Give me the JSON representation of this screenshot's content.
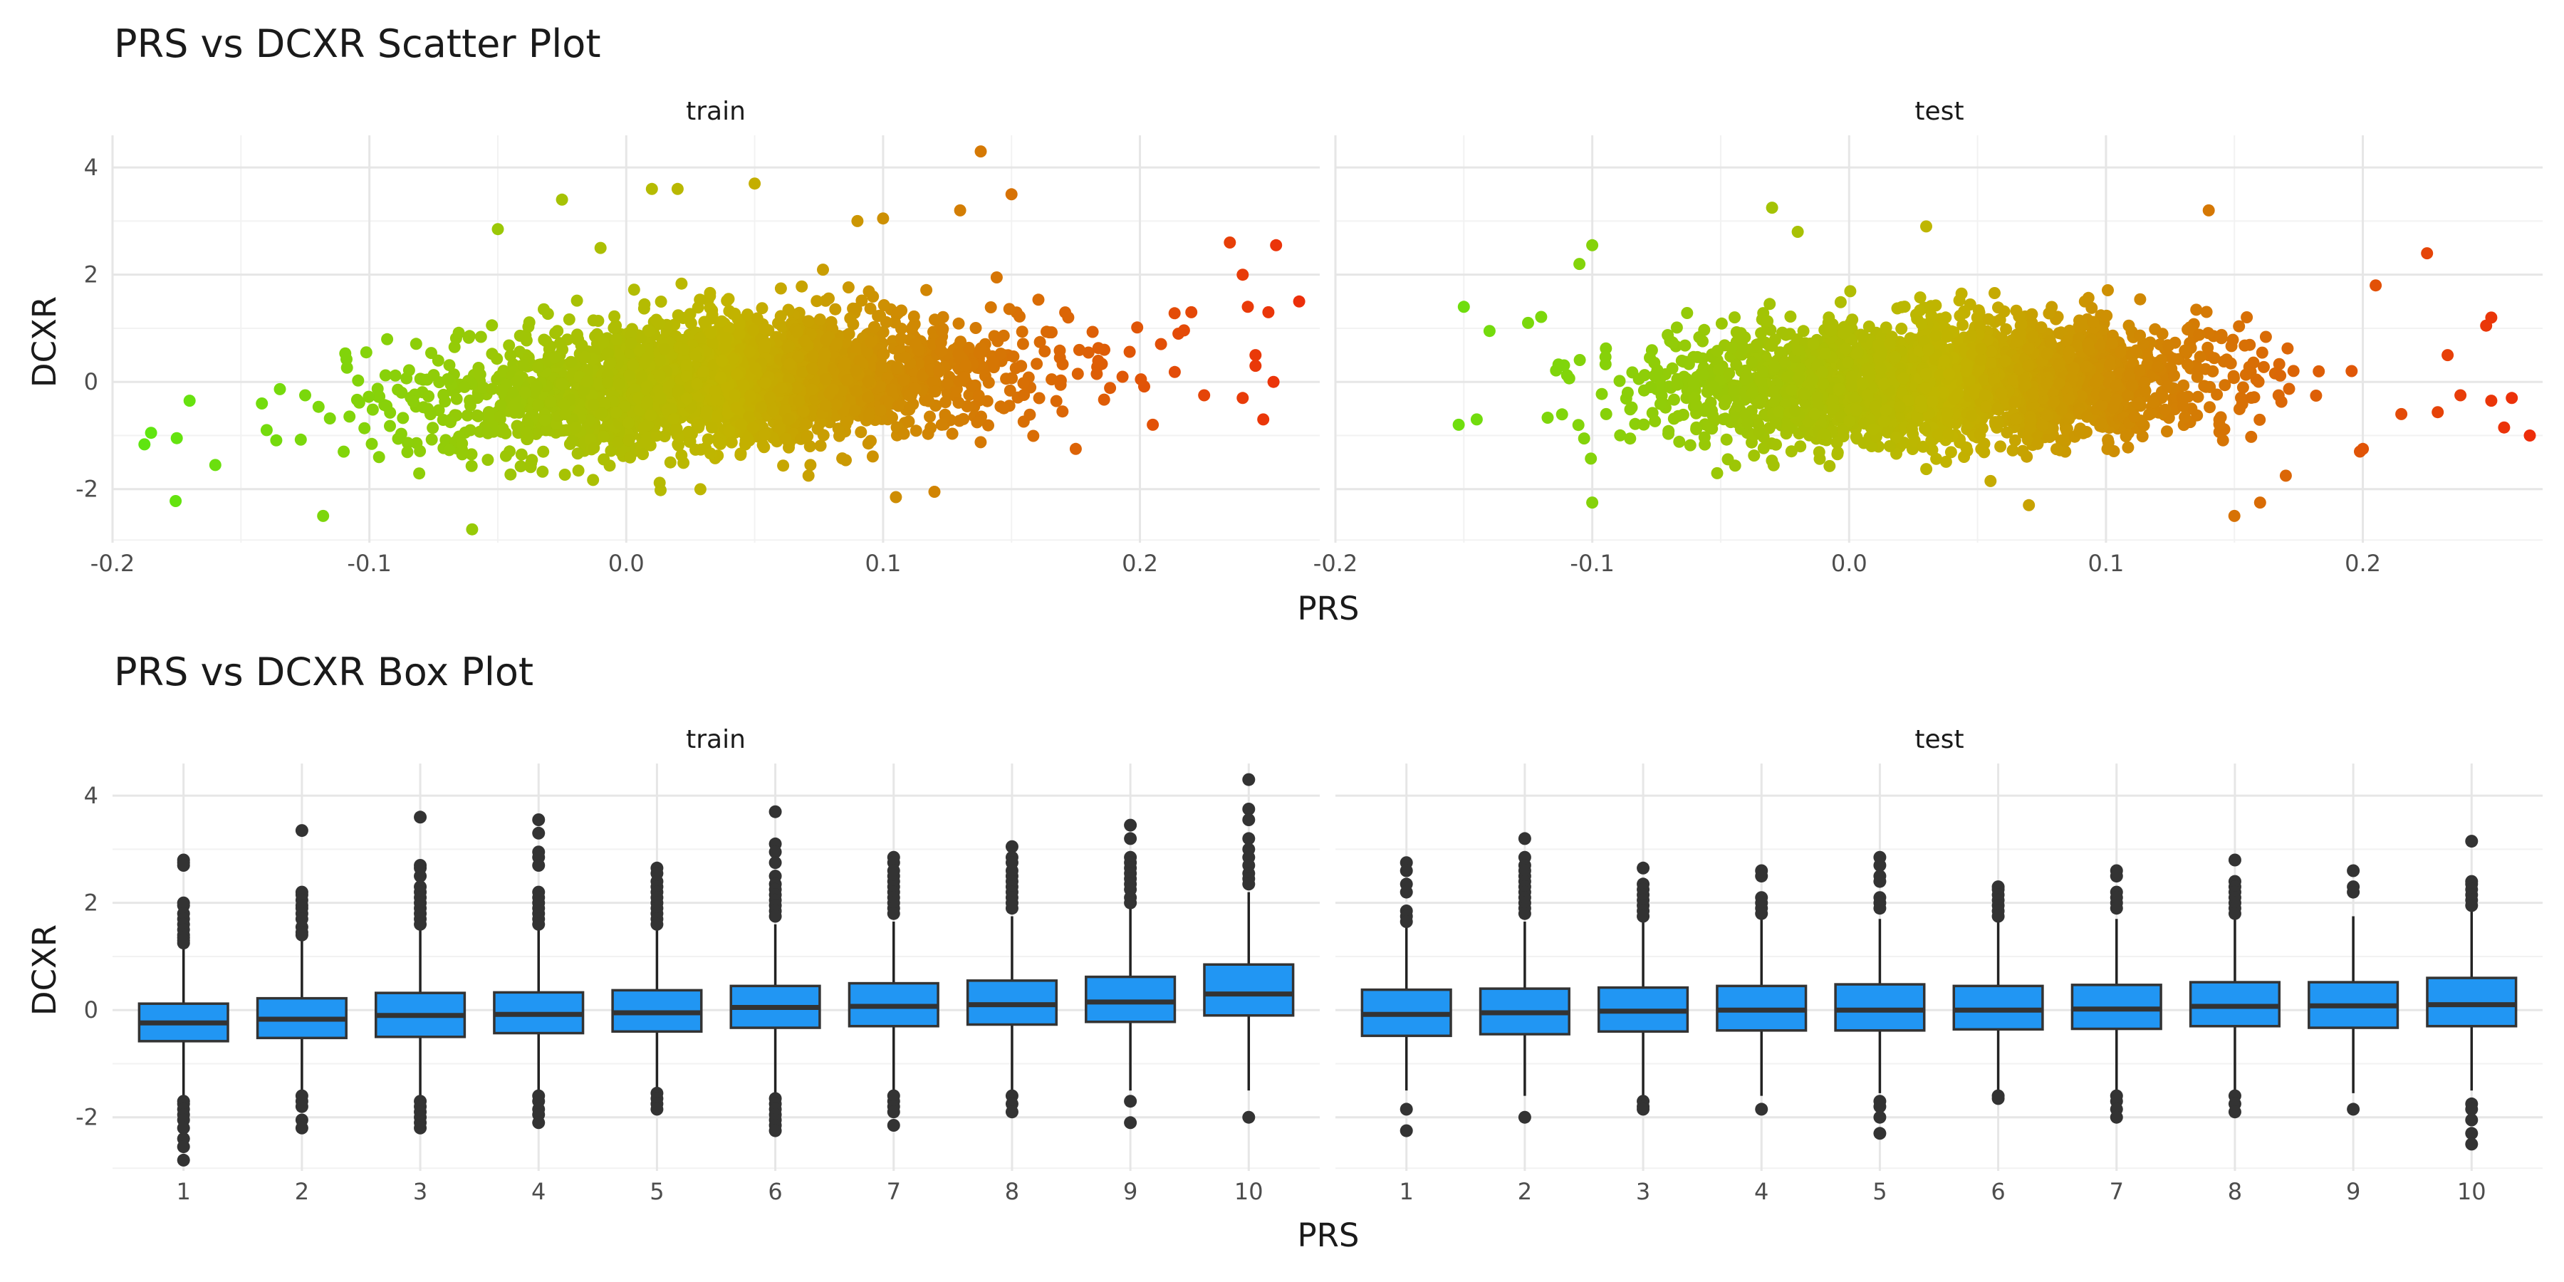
{
  "chart_data": [
    {
      "type": "scatter",
      "title": "PRS vs DCXR Scatter Plot",
      "xlabel": "PRS",
      "ylabel": "DCXR",
      "xlim": [
        -0.2,
        0.27
      ],
      "ylim": [
        -3.0,
        4.6
      ],
      "xticks": [
        -0.2,
        -0.1,
        0.0,
        0.1,
        0.2
      ],
      "xtick_labels": [
        "-0.2",
        "-0.1",
        "0.0",
        "0.1",
        "0.2"
      ],
      "yticks": [
        -2,
        0,
        2,
        4
      ],
      "ytick_labels": [
        "-2",
        "0",
        "2",
        "4"
      ],
      "grid": true,
      "legend": "none",
      "color_scale": {
        "low": "#5ee610",
        "mid": "#c2b400",
        "high": "#ee2a0a",
        "domain": [
          -0.19,
          0.27
        ]
      },
      "panels": [
        {
          "label": "train",
          "core": {
            "x_mean": 0.04,
            "x_sd": 0.055,
            "y_mean": 0.0,
            "y_sd": 0.6,
            "slope": 2.8
          },
          "points": [
            [
              -0.185,
              -0.95
            ],
            [
              -0.175,
              -1.05
            ],
            [
              -0.16,
              -1.55
            ],
            [
              -0.17,
              -0.35
            ],
            [
              -0.14,
              -0.9
            ],
            [
              -0.125,
              -0.25
            ],
            [
              -0.118,
              -2.5
            ],
            [
              -0.11,
              -1.3
            ],
            [
              -0.06,
              -2.75
            ],
            [
              -0.05,
              2.85
            ],
            [
              -0.025,
              3.4
            ],
            [
              -0.01,
              2.5
            ],
            [
              0.01,
              3.6
            ],
            [
              0.02,
              3.6
            ],
            [
              0.05,
              3.7
            ],
            [
              0.09,
              3.0
            ],
            [
              0.1,
              3.05
            ],
            [
              0.105,
              -2.15
            ],
            [
              0.12,
              -2.05
            ],
            [
              0.13,
              3.2
            ],
            [
              0.138,
              4.3
            ],
            [
              0.15,
              3.5
            ],
            [
              0.175,
              -1.25
            ],
            [
              0.235,
              2.6
            ],
            [
              0.24,
              2.0
            ],
            [
              0.242,
              1.4
            ],
            [
              0.25,
              1.3
            ],
            [
              0.253,
              2.55
            ],
            [
              0.262,
              1.5
            ],
            [
              0.245,
              0.5
            ],
            [
              0.245,
              0.3
            ],
            [
              0.248,
              -0.7
            ],
            [
              0.24,
              -0.3
            ],
            [
              0.252,
              0.0
            ],
            [
              0.225,
              -0.25
            ],
            [
              0.215,
              0.9
            ],
            [
              0.22,
              1.3
            ],
            [
              0.205,
              -0.8
            ]
          ]
        },
        {
          "label": "test",
          "core": {
            "x_mean": 0.035,
            "x_sd": 0.052,
            "y_mean": 0.0,
            "y_sd": 0.55,
            "slope": 1.0
          },
          "points": [
            [
              -0.15,
              1.4
            ],
            [
              -0.152,
              -0.8
            ],
            [
              -0.145,
              -0.7
            ],
            [
              -0.14,
              0.95
            ],
            [
              -0.125,
              1.1
            ],
            [
              -0.105,
              2.2
            ],
            [
              -0.1,
              2.55
            ],
            [
              -0.1,
              -2.25
            ],
            [
              -0.03,
              3.25
            ],
            [
              -0.02,
              2.8
            ],
            [
              0.03,
              2.9
            ],
            [
              0.07,
              -2.3
            ],
            [
              0.14,
              3.2
            ],
            [
              0.15,
              -2.5
            ],
            [
              0.16,
              -2.25
            ],
            [
              0.17,
              -1.75
            ],
            [
              0.2,
              -1.25
            ],
            [
              0.225,
              2.4
            ],
            [
              0.233,
              0.5
            ],
            [
              0.238,
              -0.25
            ],
            [
              0.248,
              1.05
            ],
            [
              0.25,
              1.2
            ],
            [
              0.25,
              -0.35
            ],
            [
              0.255,
              -0.85
            ],
            [
              0.258,
              -0.3
            ],
            [
              0.265,
              -1.0
            ],
            [
              0.215,
              -0.6
            ],
            [
              0.205,
              1.8
            ]
          ]
        }
      ]
    },
    {
      "type": "box",
      "title": "PRS vs DCXR Box Plot",
      "xlabel": "PRS",
      "ylabel": "DCXR",
      "categories": [
        "1",
        "2",
        "3",
        "4",
        "5",
        "6",
        "7",
        "8",
        "9",
        "10"
      ],
      "ylim": [
        -3.0,
        4.6
      ],
      "yticks": [
        -2,
        0,
        2,
        4
      ],
      "ytick_labels": [
        "-2",
        "0",
        "2",
        "4"
      ],
      "grid": true,
      "legend": "none",
      "box_fill": "#2196f3",
      "box_stroke": "#222222",
      "panels": [
        {
          "label": "train",
          "boxes": [
            {
              "q1": -0.58,
              "median": -0.24,
              "q3": 0.12,
              "whisker_low": -1.6,
              "whisker_high": 1.15,
              "outliers": [
                2.8,
                2.75,
                2.7,
                2.0,
                1.95,
                1.8,
                1.7,
                1.6,
                1.5,
                1.4,
                1.35,
                1.3,
                1.25,
                -1.7,
                -1.75,
                -1.85,
                -1.95,
                -2.05,
                -2.2,
                -2.4,
                -2.55,
                -2.8
              ]
            },
            {
              "q1": -0.52,
              "median": -0.17,
              "q3": 0.22,
              "whisker_low": -1.55,
              "whisker_high": 1.3,
              "outliers": [
                3.35,
                2.2,
                2.15,
                2.05,
                1.95,
                1.9,
                1.8,
                1.7,
                1.55,
                1.45,
                1.4,
                -1.6,
                -1.7,
                -1.8,
                -2.05,
                -2.2
              ]
            },
            {
              "q1": -0.5,
              "median": -0.1,
              "q3": 0.32,
              "whisker_low": -1.6,
              "whisker_high": 1.5,
              "outliers": [
                3.6,
                2.7,
                2.65,
                2.5,
                2.3,
                2.2,
                2.1,
                2.0,
                1.9,
                1.8,
                1.7,
                1.6,
                -1.7,
                -1.8,
                -1.9,
                -2.0,
                -2.1,
                -2.2
              ]
            },
            {
              "q1": -0.43,
              "median": -0.08,
              "q3": 0.33,
              "whisker_low": -1.5,
              "whisker_high": 1.5,
              "outliers": [
                3.55,
                3.3,
                2.95,
                2.85,
                2.7,
                2.2,
                2.1,
                2.0,
                1.9,
                1.8,
                1.7,
                1.6,
                -1.6,
                -1.7,
                -1.85,
                -1.95,
                -2.1
              ]
            },
            {
              "q1": -0.4,
              "median": -0.05,
              "q3": 0.37,
              "whisker_low": -1.5,
              "whisker_high": 1.5,
              "outliers": [
                2.65,
                2.55,
                2.4,
                2.3,
                2.2,
                2.1,
                2.0,
                1.9,
                1.8,
                1.7,
                1.6,
                -1.55,
                -1.65,
                -1.75,
                -1.85
              ]
            },
            {
              "q1": -0.33,
              "median": 0.05,
              "q3": 0.45,
              "whisker_low": -1.55,
              "whisker_high": 1.6,
              "outliers": [
                3.7,
                3.1,
                2.95,
                2.75,
                2.5,
                2.35,
                2.25,
                2.15,
                2.05,
                1.95,
                1.85,
                1.75,
                -1.65,
                -1.75,
                -1.85,
                -1.95,
                -2.05,
                -2.15,
                -2.25
              ]
            },
            {
              "q1": -0.3,
              "median": 0.07,
              "q3": 0.5,
              "whisker_low": -1.55,
              "whisker_high": 1.65,
              "outliers": [
                2.85,
                2.75,
                2.6,
                2.5,
                2.4,
                2.3,
                2.2,
                2.1,
                2.0,
                1.9,
                1.8,
                -1.6,
                -1.7,
                -1.8,
                -1.9,
                -2.15
              ]
            },
            {
              "q1": -0.27,
              "median": 0.1,
              "q3": 0.55,
              "whisker_low": -1.5,
              "whisker_high": 1.75,
              "outliers": [
                3.05,
                2.85,
                2.75,
                2.6,
                2.5,
                2.4,
                2.3,
                2.2,
                2.1,
                2.0,
                1.9,
                -1.6,
                -1.75,
                -1.9
              ]
            },
            {
              "q1": -0.22,
              "median": 0.15,
              "q3": 0.62,
              "whisker_low": -1.5,
              "whisker_high": 1.9,
              "outliers": [
                3.45,
                3.2,
                2.85,
                2.75,
                2.65,
                2.55,
                2.45,
                2.35,
                2.25,
                2.1,
                2.0,
                -1.7,
                -2.1
              ]
            },
            {
              "q1": -0.1,
              "median": 0.3,
              "q3": 0.85,
              "whisker_low": -1.5,
              "whisker_high": 2.2,
              "outliers": [
                4.3,
                3.75,
                3.55,
                3.2,
                3.0,
                2.85,
                2.7,
                2.55,
                2.45,
                2.35,
                -2.0
              ]
            }
          ]
        },
        {
          "label": "test",
          "boxes": [
            {
              "q1": -0.48,
              "median": -0.08,
              "q3": 0.38,
              "whisker_low": -1.5,
              "whisker_high": 1.6,
              "outliers": [
                2.75,
                2.6,
                2.35,
                2.2,
                1.85,
                1.75,
                1.65,
                -1.85,
                -2.25
              ]
            },
            {
              "q1": -0.45,
              "median": -0.05,
              "q3": 0.4,
              "whisker_low": -1.6,
              "whisker_high": 1.65,
              "outliers": [
                3.2,
                2.85,
                2.7,
                2.6,
                2.5,
                2.4,
                2.3,
                2.2,
                2.1,
                2.0,
                1.9,
                1.8,
                -2.0
              ]
            },
            {
              "q1": -0.4,
              "median": -0.02,
              "q3": 0.42,
              "whisker_low": -1.6,
              "whisker_high": 1.65,
              "outliers": [
                2.65,
                2.35,
                2.25,
                2.15,
                2.05,
                1.95,
                1.85,
                1.75,
                -1.7,
                -1.8,
                -1.85
              ]
            },
            {
              "q1": -0.38,
              "median": 0.0,
              "q3": 0.45,
              "whisker_low": -1.6,
              "whisker_high": 1.7,
              "outliers": [
                2.6,
                2.5,
                2.1,
                2.0,
                1.9,
                1.8,
                -1.85
              ]
            },
            {
              "q1": -0.38,
              "median": 0.0,
              "q3": 0.48,
              "whisker_low": -1.55,
              "whisker_high": 1.7,
              "outliers": [
                2.85,
                2.7,
                2.5,
                2.4,
                2.1,
                2.0,
                1.9,
                -1.7,
                -1.8,
                -2.0,
                -2.3
              ]
            },
            {
              "q1": -0.36,
              "median": 0.0,
              "q3": 0.45,
              "whisker_low": -1.55,
              "whisker_high": 1.65,
              "outliers": [
                2.3,
                2.25,
                2.15,
                2.05,
                1.95,
                1.85,
                1.75,
                -1.6,
                -1.65
              ]
            },
            {
              "q1": -0.35,
              "median": 0.02,
              "q3": 0.47,
              "whisker_low": -1.55,
              "whisker_high": 1.7,
              "outliers": [
                2.6,
                2.5,
                2.2,
                2.1,
                2.0,
                1.9,
                -1.6,
                -1.7,
                -1.85,
                -2.0
              ]
            },
            {
              "q1": -0.3,
              "median": 0.07,
              "q3": 0.52,
              "whisker_low": -1.5,
              "whisker_high": 1.7,
              "outliers": [
                2.8,
                2.4,
                2.3,
                2.2,
                2.1,
                2.0,
                1.9,
                1.8,
                -1.6,
                -1.75,
                -1.9
              ]
            },
            {
              "q1": -0.33,
              "median": 0.08,
              "q3": 0.52,
              "whisker_low": -1.55,
              "whisker_high": 1.75,
              "outliers": [
                2.6,
                2.3,
                2.2,
                -1.85
              ]
            },
            {
              "q1": -0.3,
              "median": 0.1,
              "q3": 0.6,
              "whisker_low": -1.5,
              "whisker_high": 1.85,
              "outliers": [
                3.15,
                2.4,
                2.35,
                2.25,
                2.15,
                2.05,
                1.95,
                -1.75,
                -1.85,
                -2.05,
                -2.3,
                -2.5
              ]
            }
          ]
        }
      ]
    }
  ]
}
